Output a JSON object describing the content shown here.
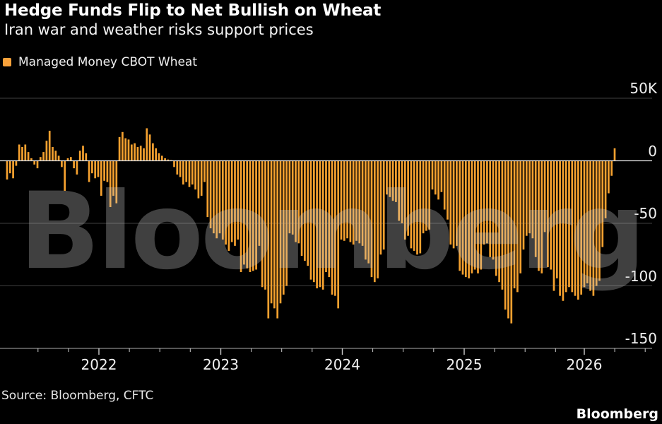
{
  "header": {
    "title": "Hedge Funds Flip to Net Bullish on Wheat",
    "subtitle": "Iran war and weather risks support prices"
  },
  "legend": {
    "label": "Managed Money CBOT Wheat",
    "swatch_color": "#F9A23B"
  },
  "watermark": {
    "text": "Bloomberg"
  },
  "footer": {
    "source": "Source: Bloomberg, CFTC",
    "brand": "Bloomberg"
  },
  "colors": {
    "background": "#000000",
    "bar": "#F5A12F",
    "gridline": "#3f3f3f",
    "zero_line": "#dddddd",
    "axis_line": "#8a8a8a",
    "tick": "#cccccc",
    "text": "#f2f2f2"
  },
  "chart_data": {
    "type": "bar",
    "title": "Hedge Funds Flip to Net Bullish on Wheat",
    "subtitle": "Iran war and weather risks support prices",
    "series_name": "Managed Money CBOT Wheat",
    "unit": "thousand contracts (net position)",
    "ylim": [
      -155,
      55
    ],
    "grid": true,
    "legend_position": "top-left",
    "y_ticks": [
      {
        "label": "50K",
        "value": 50
      },
      {
        "label": "0",
        "value": 0
      },
      {
        "label": "-50",
        "value": -50
      },
      {
        "label": "-100",
        "value": -100
      },
      {
        "label": "-150",
        "value": -150
      }
    ],
    "x_ticks": [
      "2022",
      "2023",
      "2024",
      "2025",
      "2026"
    ],
    "x_note": "weekly CFTC positioning bars from mid-2021 through early 2026; final bar flips positive",
    "values": [
      -15,
      -10,
      -14,
      -4,
      13,
      11,
      13,
      7,
      2,
      -3,
      -6,
      3,
      7,
      16,
      24,
      11,
      8,
      4,
      -5,
      -24,
      2,
      3,
      -6,
      -11,
      8,
      12,
      6,
      -17,
      -10,
      -14,
      -13,
      -28,
      -16,
      -17,
      -37,
      -28,
      -34,
      19,
      23,
      18,
      17,
      13,
      14,
      11,
      12,
      10,
      26,
      21,
      14,
      10,
      6,
      4,
      2,
      1,
      0.5,
      -5,
      -11,
      -13,
      -19,
      -17,
      -21,
      -19,
      -23,
      -30,
      -28,
      -17,
      -45,
      -54,
      -58,
      -62,
      -58,
      -63,
      -67,
      -72,
      -65,
      -68,
      -63,
      -89,
      -83,
      -86,
      -89,
      -88,
      -87,
      -68,
      -101,
      -103,
      -126,
      -114,
      -118,
      -126,
      -114,
      -107,
      -100,
      -58,
      -59,
      -65,
      -66,
      -76,
      -80,
      -84,
      -95,
      -97,
      -102,
      -101,
      -103,
      -89,
      -93,
      -107,
      -108,
      -118,
      -63,
      -64,
      -62,
      -65,
      -67,
      -64,
      -66,
      -68,
      -79,
      -82,
      -93,
      -97,
      -94,
      -75,
      -71,
      -27,
      -29,
      -32,
      -33,
      -48,
      -50,
      -63,
      -60,
      -70,
      -72,
      -75,
      -74,
      -58,
      -56,
      -55,
      -23,
      -27,
      -31,
      -25,
      -39,
      -47,
      -67,
      -70,
      -68,
      -88,
      -91,
      -93,
      -94,
      -90,
      -87,
      -90,
      -87,
      -67,
      -66,
      -77,
      -79,
      -92,
      -97,
      -103,
      -119,
      -126,
      -130,
      -102,
      -105,
      -90,
      -71,
      -60,
      -58,
      -62,
      -77,
      -88,
      -90,
      -57,
      -85,
      -87,
      -104,
      -94,
      -108,
      -112,
      -105,
      -101,
      -105,
      -108,
      -111,
      -107,
      -101,
      -98,
      -104,
      -108,
      -100,
      -96,
      -69,
      -46,
      -26,
      -12,
      10
    ]
  }
}
